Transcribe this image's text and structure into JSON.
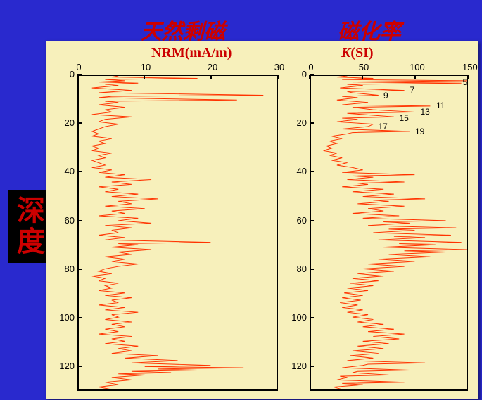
{
  "background_color": "#2929ce",
  "plot_background": "#f7f0bb",
  "line_color": "#ff3300",
  "axis_color": "#000000",
  "header_color": "#cc0000",
  "yaxis_box_bg": "#000000",
  "title_left": "天然剩磁",
  "title_right": "磁化率",
  "yaxis_label": "深度",
  "left_chart": {
    "subtitle": "NRM(mA/m)",
    "type": "line-depth",
    "xlim": [
      0,
      30
    ],
    "ylim": [
      0,
      130
    ],
    "xticks": [
      0,
      10,
      20,
      30
    ],
    "yticks": [
      0,
      20,
      40,
      60,
      80,
      100,
      120
    ],
    "axis_fontsize": 13,
    "title_fontsize": 20,
    "line_width": 1,
    "data": [
      [
        6,
        0
      ],
      [
        5,
        0.5
      ],
      [
        18,
        1
      ],
      [
        4,
        1.5
      ],
      [
        7,
        2
      ],
      [
        3,
        2.5
      ],
      [
        9,
        3
      ],
      [
        4,
        3.5
      ],
      [
        6,
        4
      ],
      [
        2,
        5
      ],
      [
        8,
        6
      ],
      [
        3,
        7
      ],
      [
        28,
        8
      ],
      [
        5,
        8.5
      ],
      [
        3,
        9
      ],
      [
        24,
        10
      ],
      [
        4,
        10.5
      ],
      [
        6,
        11
      ],
      [
        3,
        12
      ],
      [
        7,
        13
      ],
      [
        4,
        14
      ],
      [
        5,
        15
      ],
      [
        2,
        16
      ],
      [
        8,
        17
      ],
      [
        4,
        18
      ],
      [
        3,
        19
      ],
      [
        6,
        20
      ],
      [
        4,
        21
      ],
      [
        3,
        22
      ],
      [
        2,
        23
      ],
      [
        3,
        24
      ],
      [
        2,
        25
      ],
      [
        5,
        26
      ],
      [
        3,
        27
      ],
      [
        4,
        28
      ],
      [
        2,
        29
      ],
      [
        3,
        30
      ],
      [
        2,
        31
      ],
      [
        5,
        32
      ],
      [
        3,
        33
      ],
      [
        4,
        34
      ],
      [
        2,
        35
      ],
      [
        3,
        36
      ],
      [
        4,
        37
      ],
      [
        2,
        38
      ],
      [
        5,
        39
      ],
      [
        3,
        40
      ],
      [
        7,
        41
      ],
      [
        4,
        42
      ],
      [
        11,
        43
      ],
      [
        5,
        44
      ],
      [
        8,
        45
      ],
      [
        3,
        46
      ],
      [
        6,
        47
      ],
      [
        4,
        48
      ],
      [
        9,
        49
      ],
      [
        5,
        50
      ],
      [
        12,
        51
      ],
      [
        6,
        52
      ],
      [
        8,
        53
      ],
      [
        4,
        54
      ],
      [
        10,
        55
      ],
      [
        5,
        56
      ],
      [
        7,
        57
      ],
      [
        3,
        58
      ],
      [
        9,
        59
      ],
      [
        6,
        60
      ],
      [
        11,
        61
      ],
      [
        4,
        62
      ],
      [
        8,
        63
      ],
      [
        5,
        64
      ],
      [
        6,
        65
      ],
      [
        3,
        66
      ],
      [
        7,
        67
      ],
      [
        4,
        68
      ],
      [
        20,
        69
      ],
      [
        6,
        69.5
      ],
      [
        9,
        70
      ],
      [
        5,
        71
      ],
      [
        11,
        72
      ],
      [
        6,
        73
      ],
      [
        8,
        74
      ],
      [
        4,
        75
      ],
      [
        7,
        76
      ],
      [
        5,
        77
      ],
      [
        9,
        78
      ],
      [
        6,
        79
      ],
      [
        4,
        80
      ],
      [
        3,
        81
      ],
      [
        5,
        82
      ],
      [
        2,
        83
      ],
      [
        4,
        84
      ],
      [
        3,
        85
      ],
      [
        6,
        86
      ],
      [
        4,
        87
      ],
      [
        5,
        88
      ],
      [
        3,
        89
      ],
      [
        7,
        90
      ],
      [
        4,
        91
      ],
      [
        8,
        92
      ],
      [
        5,
        93
      ],
      [
        6,
        94
      ],
      [
        3,
        95
      ],
      [
        7,
        96
      ],
      [
        4,
        97
      ],
      [
        9,
        98
      ],
      [
        5,
        99
      ],
      [
        6,
        100
      ],
      [
        4,
        101
      ],
      [
        8,
        102
      ],
      [
        5,
        103
      ],
      [
        7,
        104
      ],
      [
        4,
        105
      ],
      [
        6,
        106
      ],
      [
        3,
        107
      ],
      [
        8,
        108
      ],
      [
        5,
        109
      ],
      [
        7,
        110
      ],
      [
        4,
        111
      ],
      [
        9,
        112
      ],
      [
        6,
        113
      ],
      [
        8,
        114
      ],
      [
        5,
        115
      ],
      [
        12,
        116
      ],
      [
        7,
        117
      ],
      [
        15,
        118
      ],
      [
        8,
        119
      ],
      [
        20,
        120
      ],
      [
        10,
        120.5
      ],
      [
        25,
        121
      ],
      [
        12,
        121.5
      ],
      [
        18,
        122
      ],
      [
        8,
        122.5
      ],
      [
        14,
        123
      ],
      [
        6,
        123.5
      ],
      [
        10,
        124
      ],
      [
        5,
        125
      ],
      [
        8,
        126
      ],
      [
        4,
        127
      ],
      [
        6,
        128
      ],
      [
        3,
        129
      ],
      [
        5,
        130
      ]
    ]
  },
  "right_chart": {
    "subtitle_prefix": "K",
    "subtitle_suffix": "(SI)",
    "type": "line-depth",
    "xlim": [
      0,
      150
    ],
    "ylim": [
      0,
      130
    ],
    "xticks": [
      0,
      50,
      100,
      150
    ],
    "yticks": [
      0,
      20,
      40,
      60,
      80,
      100,
      120
    ],
    "axis_fontsize": 13,
    "title_fontsize": 20,
    "line_width": 1,
    "annotations": [
      {
        "label": "5",
        "depth": 3,
        "x_offset": 145
      },
      {
        "label": "7",
        "depth": 6,
        "x_offset": 95
      },
      {
        "label": "9",
        "depth": 8.5,
        "x_offset": 70
      },
      {
        "label": "11",
        "depth": 12.5,
        "x_offset": 120
      },
      {
        "label": "13",
        "depth": 15,
        "x_offset": 105
      },
      {
        "label": "15",
        "depth": 17.5,
        "x_offset": 85
      },
      {
        "label": "17",
        "depth": 21,
        "x_offset": 65
      },
      {
        "label": "19",
        "depth": 23,
        "x_offset": 100
      }
    ],
    "data": [
      [
        35,
        0
      ],
      [
        25,
        0.5
      ],
      [
        60,
        1
      ],
      [
        30,
        1.5
      ],
      [
        150,
        2
      ],
      [
        40,
        2.5
      ],
      [
        145,
        3
      ],
      [
        35,
        3.5
      ],
      [
        50,
        4
      ],
      [
        28,
        5
      ],
      [
        90,
        6
      ],
      [
        35,
        6.5
      ],
      [
        40,
        7
      ],
      [
        65,
        8
      ],
      [
        30,
        8.5
      ],
      [
        45,
        9
      ],
      [
        25,
        10
      ],
      [
        55,
        11
      ],
      [
        30,
        12
      ],
      [
        115,
        12.5
      ],
      [
        40,
        13
      ],
      [
        60,
        14
      ],
      [
        100,
        15
      ],
      [
        35,
        15.5
      ],
      [
        50,
        16
      ],
      [
        80,
        17
      ],
      [
        30,
        17.5
      ],
      [
        45,
        18
      ],
      [
        25,
        19
      ],
      [
        60,
        20
      ],
      [
        55,
        21
      ],
      [
        30,
        22
      ],
      [
        95,
        23
      ],
      [
        40,
        23.5
      ],
      [
        35,
        24
      ],
      [
        20,
        25
      ],
      [
        30,
        26
      ],
      [
        18,
        27
      ],
      [
        25,
        28
      ],
      [
        15,
        29
      ],
      [
        20,
        30
      ],
      [
        12,
        31
      ],
      [
        25,
        32
      ],
      [
        18,
        33
      ],
      [
        30,
        34
      ],
      [
        20,
        35
      ],
      [
        35,
        36
      ],
      [
        25,
        37
      ],
      [
        40,
        38
      ],
      [
        50,
        39
      ],
      [
        30,
        40
      ],
      [
        100,
        41
      ],
      [
        40,
        41.5
      ],
      [
        60,
        42
      ],
      [
        35,
        43
      ],
      [
        90,
        44
      ],
      [
        45,
        44.5
      ],
      [
        55,
        45
      ],
      [
        30,
        46
      ],
      [
        70,
        47
      ],
      [
        40,
        48
      ],
      [
        80,
        49
      ],
      [
        50,
        50
      ],
      [
        110,
        51
      ],
      [
        60,
        51.5
      ],
      [
        75,
        52
      ],
      [
        45,
        53
      ],
      [
        90,
        54
      ],
      [
        55,
        55
      ],
      [
        70,
        56
      ],
      [
        40,
        57
      ],
      [
        85,
        58
      ],
      [
        50,
        59
      ],
      [
        130,
        60
      ],
      [
        70,
        60.5
      ],
      [
        95,
        61
      ],
      [
        55,
        62
      ],
      [
        140,
        63
      ],
      [
        75,
        63.5
      ],
      [
        100,
        64
      ],
      [
        60,
        65
      ],
      [
        135,
        66
      ],
      [
        80,
        66.5
      ],
      [
        110,
        67
      ],
      [
        65,
        68
      ],
      [
        145,
        69
      ],
      [
        85,
        69.5
      ],
      [
        120,
        70
      ],
      [
        70,
        71
      ],
      [
        150,
        72
      ],
      [
        90,
        72.5
      ],
      [
        130,
        73
      ],
      [
        75,
        74
      ],
      [
        115,
        75
      ],
      [
        65,
        76
      ],
      [
        100,
        77
      ],
      [
        55,
        78
      ],
      [
        90,
        79
      ],
      [
        50,
        80
      ],
      [
        80,
        81
      ],
      [
        45,
        82
      ],
      [
        70,
        83
      ],
      [
        40,
        84
      ],
      [
        65,
        85
      ],
      [
        38,
        86
      ],
      [
        60,
        87
      ],
      [
        35,
        88
      ],
      [
        55,
        89
      ],
      [
        32,
        90
      ],
      [
        50,
        91
      ],
      [
        30,
        92
      ],
      [
        48,
        93
      ],
      [
        28,
        94
      ],
      [
        45,
        95
      ],
      [
        30,
        96
      ],
      [
        50,
        97
      ],
      [
        35,
        98
      ],
      [
        55,
        99
      ],
      [
        40,
        100
      ],
      [
        60,
        101
      ],
      [
        45,
        102
      ],
      [
        70,
        103
      ],
      [
        50,
        104
      ],
      [
        80,
        105
      ],
      [
        55,
        106
      ],
      [
        90,
        107
      ],
      [
        60,
        108
      ],
      [
        85,
        109
      ],
      [
        50,
        110
      ],
      [
        75,
        111
      ],
      [
        45,
        112
      ],
      [
        70,
        113
      ],
      [
        40,
        114
      ],
      [
        65,
        115
      ],
      [
        38,
        116
      ],
      [
        60,
        117
      ],
      [
        35,
        118
      ],
      [
        110,
        119
      ],
      [
        55,
        119.5
      ],
      [
        50,
        120
      ],
      [
        30,
        121
      ],
      [
        95,
        122
      ],
      [
        45,
        122.5
      ],
      [
        40,
        123
      ],
      [
        75,
        124
      ],
      [
        28,
        124.5
      ],
      [
        35,
        125
      ],
      [
        25,
        126
      ],
      [
        90,
        127
      ],
      [
        30,
        127.5
      ],
      [
        50,
        128
      ],
      [
        22,
        129
      ],
      [
        30,
        130
      ]
    ]
  }
}
